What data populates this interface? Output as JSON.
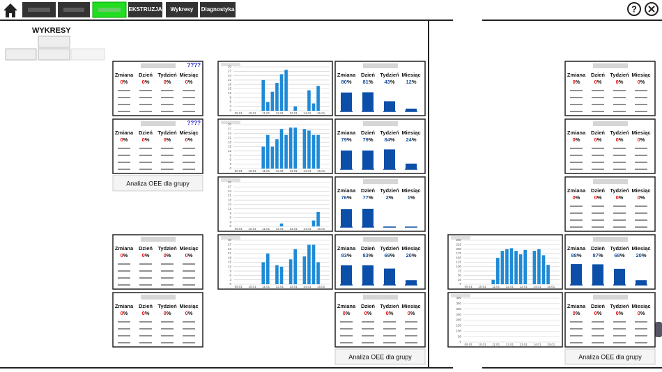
{
  "nav": {
    "items": [
      "EKSTRUZJA",
      "Wykresy",
      "Diagnostyka"
    ],
    "help": "?"
  },
  "title": "WYKRESY",
  "group_button": "Analiza OEE dla grupy",
  "oee_headers": [
    "Zmiana",
    "Dzień",
    "Tydzień",
    "Miesiąc"
  ],
  "unit": "%",
  "cards": [
    {
      "values": [
        0,
        0,
        0,
        0
      ],
      "flag": "????",
      "bars": false
    },
    {
      "values": [
        0,
        0,
        0,
        0
      ],
      "flag": "????",
      "bars": false
    },
    {
      "values": [
        0,
        0,
        0,
        0
      ],
      "bars": false
    },
    {
      "values": [
        0,
        0,
        0,
        0
      ],
      "bars": false
    },
    {
      "values": [
        80,
        81,
        43,
        12
      ],
      "bars": true
    },
    {
      "values": [
        79,
        79,
        84,
        24
      ],
      "bars": true
    },
    {
      "values": [
        76,
        77,
        2,
        1
      ],
      "bars": true
    },
    {
      "values": [
        83,
        83,
        69,
        20
      ],
      "bars": true
    },
    {
      "values": [
        0,
        0,
        0,
        0
      ],
      "bars": false
    },
    {
      "values": [
        0,
        0,
        0,
        0
      ],
      "bars": false
    },
    {
      "values": [
        0,
        0,
        0,
        0
      ],
      "bars": false
    },
    {
      "values": [
        0,
        0,
        0,
        0
      ],
      "bars": false
    },
    {
      "values": [
        88,
        87,
        68,
        20
      ],
      "bars": true
    },
    {
      "values": [
        0,
        0,
        0,
        0
      ],
      "bars": false
    }
  ],
  "charts": [
    {
      "type": "bar",
      "color": "#1f8ad6",
      "categories": [
        "09.01",
        null,
        null,
        "10.01",
        null,
        null,
        "11.01",
        null,
        null,
        "12.01",
        null,
        null,
        "13.01",
        null,
        null,
        "14.01",
        null,
        null,
        "15.01",
        null,
        null
      ],
      "values": [
        0,
        0,
        0,
        0,
        0,
        0,
        21,
        6,
        13,
        19,
        25,
        28,
        0,
        3,
        0,
        0,
        14,
        5,
        17,
        0,
        0
      ],
      "ylim": [
        0,
        30
      ],
      "yticks": [
        0,
        3,
        6,
        9,
        12,
        15,
        18,
        21,
        24,
        27,
        30
      ],
      "grid": true
    },
    {
      "type": "bar",
      "color": "#1f8ad6",
      "categories": [
        "09.01",
        null,
        null,
        "10.01",
        null,
        null,
        "11.01",
        null,
        null,
        "12.01",
        null,
        null,
        "13.01",
        null,
        null,
        "14.01",
        null,
        null,
        "15.01",
        null,
        null
      ],
      "values": [
        0,
        0,
        0,
        0,
        0,
        0,
        15,
        23,
        15,
        20,
        27,
        23,
        28,
        28,
        0,
        27,
        26,
        23,
        23,
        0,
        0
      ],
      "ylim": [
        0,
        30
      ],
      "yticks": [
        0,
        3,
        6,
        9,
        12,
        15,
        18,
        21,
        24,
        27,
        30
      ],
      "grid": true
    },
    {
      "type": "bar",
      "color": "#1f8ad6",
      "categories": [
        "09.01",
        null,
        null,
        "10.01",
        null,
        null,
        "11.01",
        null,
        null,
        "12.01",
        null,
        null,
        "13.01",
        null,
        null,
        "14.01",
        null,
        null,
        "15.01",
        null,
        null
      ],
      "values": [
        0,
        0,
        0,
        0,
        0,
        0,
        0,
        0,
        0,
        0,
        2,
        0,
        0,
        0,
        0,
        0,
        0,
        4,
        10,
        0,
        0
      ],
      "ylim": [
        0,
        30
      ],
      "yticks": [
        0,
        3,
        6,
        9,
        12,
        15,
        18,
        21,
        24,
        27,
        30
      ],
      "grid": true
    },
    {
      "type": "bar",
      "color": "#1f8ad6",
      "categories": [
        "09.01",
        null,
        null,
        "10.01",
        null,
        null,
        "11.01",
        null,
        null,
        "12.01",
        null,
        null,
        "13.01",
        null,
        null,
        "14.01",
        null,
        null,
        "15.01",
        null,
        null
      ],
      "values": [
        0,
        0,
        0,
        0,
        0,
        0,
        15,
        21,
        0,
        13,
        12,
        0,
        17,
        24,
        0,
        19,
        27,
        27,
        15,
        0,
        0
      ],
      "ylim": [
        0,
        30
      ],
      "yticks": [
        0,
        3,
        6,
        9,
        12,
        15,
        18,
        21,
        24,
        27,
        30
      ],
      "grid": true
    },
    {
      "type": "bar",
      "color": "#1f8ad6",
      "categories": [
        "09.01",
        null,
        null,
        "10.01",
        null,
        null,
        "11.01",
        null,
        null,
        "12.01",
        null,
        null,
        "13.01",
        null,
        null,
        "14.01",
        null,
        null,
        "15.01",
        null,
        null
      ],
      "values": [
        0,
        0,
        0,
        0,
        0,
        0,
        25,
        150,
        190,
        200,
        205,
        190,
        170,
        195,
        0,
        190,
        200,
        165,
        110,
        0,
        0
      ],
      "ylim": [
        0,
        250
      ],
      "yticks": [
        0,
        25,
        50,
        75,
        100,
        125,
        150,
        175,
        200,
        225,
        250
      ],
      "grid": true
    },
    {
      "type": "bar",
      "color": "#1f8ad6",
      "categories": [
        "09.01",
        null,
        null,
        "10.01",
        null,
        null,
        "11.01",
        null,
        null,
        "12.01",
        null,
        null,
        "13.01",
        null,
        null,
        "14.01",
        null,
        null,
        "15.01",
        null,
        null
      ],
      "values": [
        0,
        0,
        0,
        0,
        0,
        0,
        0,
        0,
        0,
        0,
        0,
        0,
        0,
        0,
        0,
        0,
        0,
        0,
        0,
        0,
        0
      ],
      "ylim": [
        0,
        400
      ],
      "yticks": [
        0,
        50,
        100,
        150,
        200,
        250,
        300,
        350,
        400
      ],
      "grid": true
    }
  ]
}
